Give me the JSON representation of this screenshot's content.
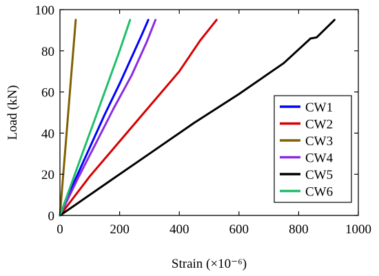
{
  "chart_data": {
    "type": "line",
    "title": "",
    "xlabel": "Strain (×10⁻⁶)",
    "ylabel": "Load (kN)",
    "xlim": [
      0,
      1000
    ],
    "ylim": [
      0,
      100
    ],
    "x_ticks": [
      0,
      200,
      400,
      600,
      800,
      1000
    ],
    "y_ticks": [
      0,
      20,
      40,
      60,
      80,
      100
    ],
    "grid": false,
    "legend_position": "right",
    "series": [
      {
        "name": "CW1",
        "color": "#0000ff",
        "x": [
          0,
          50,
          100,
          150,
          200,
          250,
          275,
          296
        ],
        "y": [
          0,
          17,
          33,
          49,
          64,
          80,
          88,
          95
        ]
      },
      {
        "name": "CW2",
        "color": "#d60000",
        "x": [
          0,
          100,
          200,
          300,
          400,
          470,
          525
        ],
        "y": [
          0,
          19,
          36,
          53,
          70,
          85,
          95
        ]
      },
      {
        "name": "CW3",
        "color": "#806000",
        "x": [
          0,
          10,
          20,
          30,
          40,
          50,
          53
        ],
        "y": [
          0,
          18,
          36,
          54,
          72,
          90,
          95
        ]
      },
      {
        "name": "CW4",
        "color": "#8a2be2",
        "x": [
          0,
          60,
          120,
          180,
          240,
          290,
          320
        ],
        "y": [
          0,
          18,
          35,
          52,
          68,
          84,
          95
        ]
      },
      {
        "name": "CW5",
        "color": "#000000",
        "x": [
          0,
          50,
          150,
          300,
          450,
          600,
          750,
          840,
          860,
          920
        ],
        "y": [
          0,
          5,
          15,
          30,
          45,
          59,
          74,
          86,
          86.5,
          95
        ]
      },
      {
        "name": "CW6",
        "color": "#1fbf6a",
        "x": [
          0,
          40,
          80,
          120,
          160,
          200,
          235
        ],
        "y": [
          0,
          16,
          32,
          48,
          64,
          80,
          95
        ]
      }
    ]
  }
}
